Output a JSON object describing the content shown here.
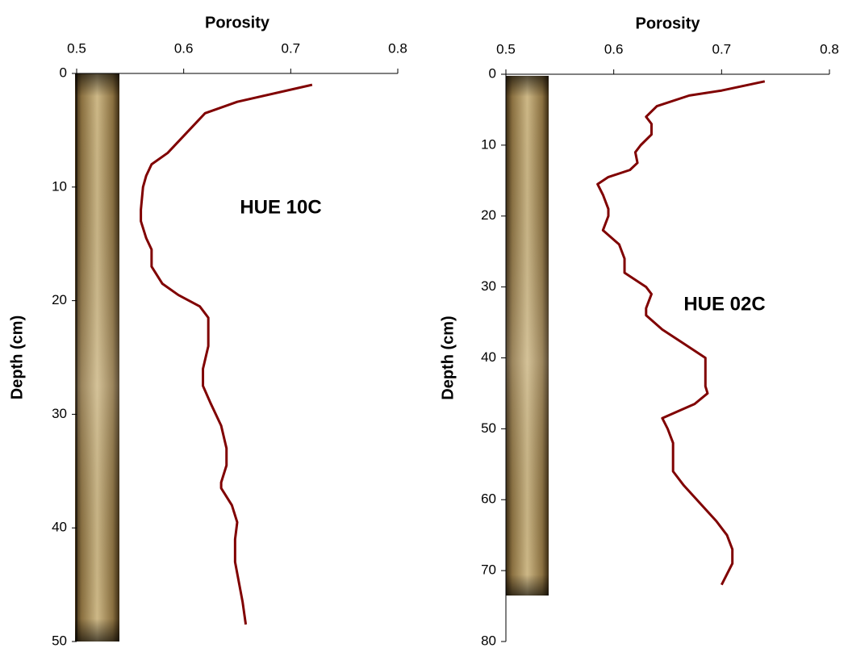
{
  "chart_data": [
    {
      "type": "line",
      "x_label": "Porosity",
      "y_label": "Depth (cm)",
      "annotation": "HUE 10C",
      "xlim": [
        0.5,
        0.8
      ],
      "xticks": [
        0.5,
        0.6,
        0.7,
        0.8
      ],
      "ylim": [
        0,
        50
      ],
      "yticks": [
        0,
        10,
        20,
        30,
        40,
        50
      ],
      "y_inverted": true,
      "series": [
        {
          "color": "#800000",
          "x": [
            0.72,
            0.65,
            0.62,
            0.6,
            0.585,
            0.57,
            0.565,
            0.562,
            0.56,
            0.56,
            0.565,
            0.57,
            0.57,
            0.58,
            0.595,
            0.615,
            0.623,
            0.623,
            0.618,
            0.618,
            0.625,
            0.635,
            0.64,
            0.64,
            0.635,
            0.635,
            0.645,
            0.65,
            0.648,
            0.648,
            0.652,
            0.655,
            0.658
          ],
          "y": [
            1,
            2.5,
            3.5,
            5.5,
            7,
            8,
            9,
            10,
            12,
            13,
            14.5,
            15.5,
            17,
            18.5,
            19.5,
            20.5,
            21.5,
            24,
            26,
            27.5,
            29,
            31,
            33,
            34.5,
            36,
            36.5,
            38,
            39.5,
            41,
            43,
            45,
            46.5,
            48.5
          ]
        }
      ]
    },
    {
      "type": "line",
      "x_label": "Porosity",
      "y_label": "Depth (cm)",
      "annotation": "HUE 02C",
      "xlim": [
        0.5,
        0.8
      ],
      "xticks": [
        0.5,
        0.6,
        0.7,
        0.8
      ],
      "ylim": [
        0,
        80
      ],
      "yticks": [
        0,
        10,
        20,
        30,
        40,
        50,
        60,
        70,
        80
      ],
      "y_inverted": true,
      "series": [
        {
          "color": "#800000",
          "x": [
            0.74,
            0.7,
            0.67,
            0.64,
            0.63,
            0.635,
            0.635,
            0.625,
            0.62,
            0.622,
            0.615,
            0.595,
            0.585,
            0.59,
            0.595,
            0.595,
            0.59,
            0.605,
            0.61,
            0.61,
            0.63,
            0.635,
            0.63,
            0.63,
            0.645,
            0.665,
            0.685,
            0.685,
            0.685,
            0.687,
            0.675,
            0.645,
            0.65,
            0.655,
            0.655,
            0.655,
            0.665,
            0.68,
            0.695,
            0.705,
            0.71,
            0.71,
            0.7
          ],
          "y": [
            1,
            2.3,
            3,
            4.5,
            6,
            7,
            8.5,
            10,
            11,
            12.5,
            13.5,
            14.5,
            15.5,
            17,
            19,
            20,
            22,
            24,
            26,
            28,
            30,
            31,
            33,
            34,
            36,
            38,
            40,
            42,
            44,
            45,
            46.5,
            48.5,
            50,
            52,
            54,
            56,
            58,
            60.5,
            63,
            65,
            67,
            69,
            72
          ]
        }
      ]
    }
  ]
}
